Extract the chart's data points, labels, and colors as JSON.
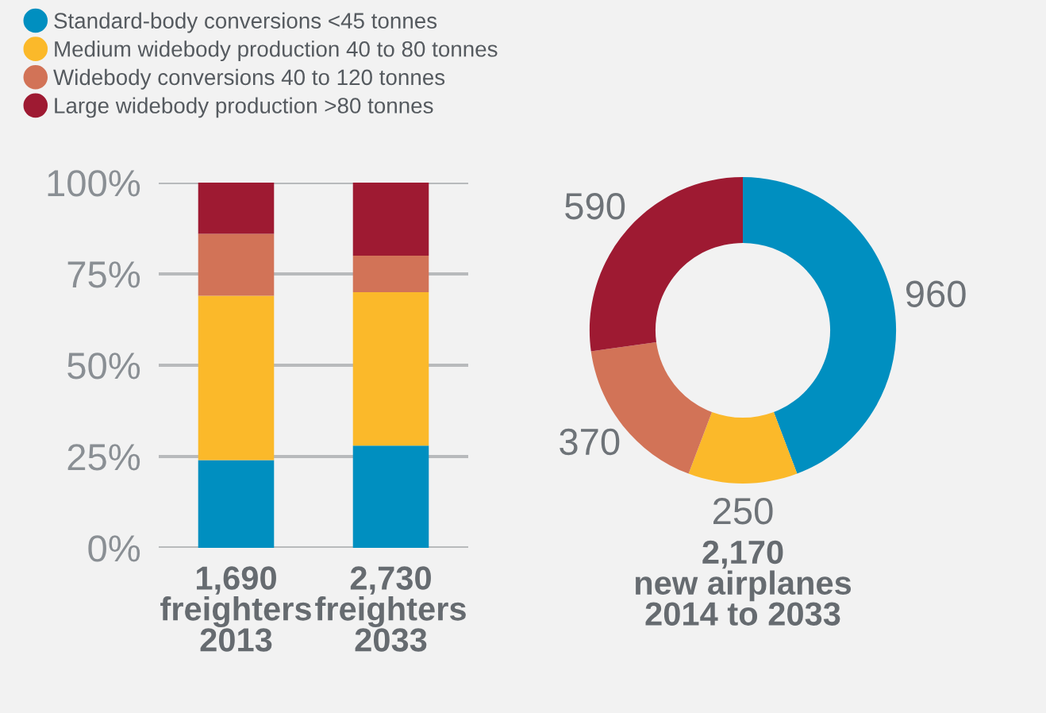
{
  "chart_data": [
    {
      "type": "bar",
      "stacked": true,
      "categories": [
        "1,690\nfreighters\n2013",
        "2,730\nfreighters\n2033"
      ],
      "series": [
        {
          "name": "Standard-body conversions <45 tonnes",
          "color": "#008fc0",
          "values": [
            24,
            28
          ]
        },
        {
          "name": "Medium widebody production 40 to 80 tonnes",
          "color": "#fbb92a",
          "values": [
            45,
            42
          ]
        },
        {
          "name": "Widebody conversions 40 to 120 tonnes",
          "color": "#d27357",
          "values": [
            17,
            10
          ]
        },
        {
          "name": "Large widebody production >80 tonnes",
          "color": "#9e1a32",
          "values": [
            14,
            20
          ]
        }
      ],
      "ylim": [
        0,
        100
      ],
      "yticks": [
        {
          "value": 0,
          "label": "0%"
        },
        {
          "value": 25,
          "label": "25%"
        },
        {
          "value": 50,
          "label": "50%"
        },
        {
          "value": 75,
          "label": "75%"
        },
        {
          "value": 100,
          "label": "100%"
        }
      ],
      "grid": "y",
      "legend": "top left"
    },
    {
      "type": "donut",
      "categories": [
        null,
        null,
        null,
        null
      ],
      "values": [
        960,
        250,
        370,
        590
      ],
      "colors": [
        "#008fc0",
        "#fbb92a",
        "#d27357",
        "#9e1a32"
      ],
      "data_labels": true,
      "xlabel": "2,170\nnew airplanes\n2014 to 2033"
    }
  ]
}
